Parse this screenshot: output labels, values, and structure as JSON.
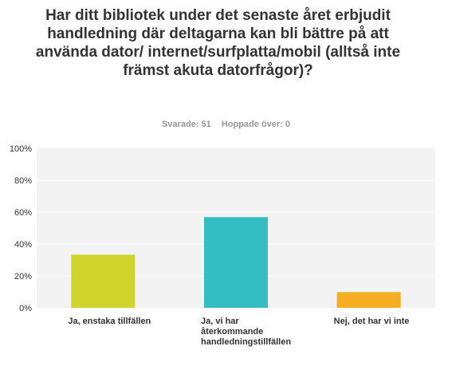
{
  "header": {
    "title": "Har ditt bibliotek under det senaste året erbjudit handledning där deltagarna kan bli bättre på att använda dator/ internet/surfplatta/mobil (alltså inte främst akuta datorfrågor)?",
    "answered_label": "Svarade:",
    "answered_value": "51",
    "skipped_label": "Hoppade över:",
    "skipped_value": "0"
  },
  "chart_data": {
    "type": "bar",
    "categories": [
      "Ja, enstaka tillfällen",
      "Ja, vi har återkommande handledningstillfällen",
      "Nej, det har vi inte"
    ],
    "values": [
      33.33,
      56.86,
      9.8
    ],
    "colors": [
      "#cfd52d",
      "#35bec1",
      "#f5ae21"
    ],
    "yticks": [
      "0%",
      "20%",
      "40%",
      "60%",
      "80%",
      "100%"
    ],
    "ylim": [
      0,
      100
    ],
    "grid": true,
    "plot_background": "#f3f3f3",
    "gridline_color": "#ffffff"
  }
}
